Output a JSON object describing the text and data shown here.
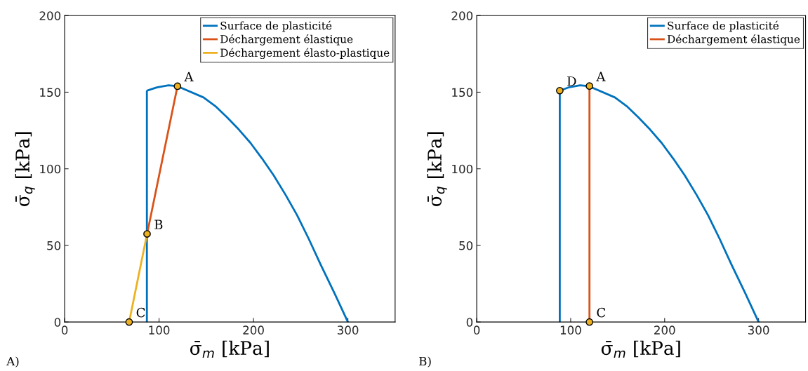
{
  "chart_data": [
    {
      "type": "line",
      "xlabel": "σ̄$_{m}$ [kPa]",
      "ylabel": "σ̄$_{q}$ [kPa]",
      "xlim": [
        0,
        350
      ],
      "xticks": [
        0,
        100,
        200,
        300
      ],
      "ylim": [
        0,
        200
      ],
      "yticks": [
        0,
        50,
        100,
        150,
        200
      ],
      "grid": false,
      "legend": "top right",
      "series": [
        {
          "name": "Surface de plasticité",
          "color": "#0072bd",
          "marker": "none",
          "x": [
            87.1,
            87.1,
            88,
            97.7,
            110,
            119.5,
            147,
            159.6,
            172,
            184.4,
            196.8,
            209.1,
            221.5,
            233.9,
            246.2,
            258.6,
            271,
            285.9,
            300
          ],
          "values": [
            0,
            150.7,
            151.2,
            153.1,
            154.5,
            153.9,
            146.6,
            140.9,
            133.6,
            125.7,
            116.9,
            106.7,
            95.6,
            83.1,
            69.7,
            54.2,
            37.7,
            18.7,
            0
          ]
        },
        {
          "name": "Déchargement élastique",
          "color": "#d95319",
          "marker": "none",
          "x": [
            119.5,
            87.3
          ],
          "values": [
            153.9,
            57.5
          ]
        },
        {
          "name": "Déchargement élasto-plastique",
          "color": "#edb120",
          "marker": "none",
          "x": [
            87.3,
            68.3
          ],
          "values": [
            57.5,
            0
          ]
        },
        {
          "type": "scatter",
          "color": "#edb120",
          "marker": "circle",
          "x": [
            119.5,
            87.3,
            68.3
          ],
          "values": [
            153.9,
            57.5,
            0
          ]
        }
      ],
      "annotations": [
        {
          "text": "A",
          "x": 119.5,
          "y": 153.9
        },
        {
          "text": "B",
          "x": 87.3,
          "y": 57.5
        },
        {
          "text": "C",
          "x": 68.3,
          "y": 0
        },
        "A)"
      ]
    },
    {
      "type": "line",
      "xlabel": "σ̄$_{m}$ [kPa]",
      "ylabel": "σ̄$_{q}$ [kPa]",
      "xlim": [
        0,
        350
      ],
      "xticks": [
        0,
        100,
        200,
        300
      ],
      "ylim": [
        0,
        200
      ],
      "yticks": [
        0,
        50,
        100,
        150,
        200
      ],
      "grid": false,
      "legend": "top right",
      "series": [
        {
          "name": "Surface de plasticité",
          "color": "#0072bd",
          "marker": "none",
          "x": [
            88.4,
            88.4,
            97.7,
            110,
            119.5,
            147,
            159.6,
            172,
            184.4,
            196.8,
            209.1,
            221.5,
            233.9,
            246.2,
            258.6,
            271,
            285.9,
            300
          ],
          "values": [
            0,
            151,
            153.1,
            154.5,
            153.9,
            146.6,
            140.9,
            133.6,
            125.7,
            116.9,
            106.7,
            95.6,
            83.1,
            69.7,
            54.2,
            37.7,
            18.7,
            0
          ]
        },
        {
          "name": "Déchargement élastique",
          "color": "#d95319",
          "marker": "none",
          "x": [
            120,
            120
          ],
          "values": [
            154,
            0
          ]
        },
        {
          "type": "scatter",
          "color": "#edb120",
          "marker": "circle",
          "x": [
            120,
            88.4,
            120
          ],
          "values": [
            154,
            151,
            0
          ]
        }
      ],
      "annotations": [
        {
          "text": "A",
          "x": 120,
          "y": 154
        },
        {
          "text": "D",
          "x": 88.4,
          "y": 151
        },
        {
          "text": "C",
          "x": 120,
          "y": 0
        },
        "B)"
      ]
    }
  ]
}
